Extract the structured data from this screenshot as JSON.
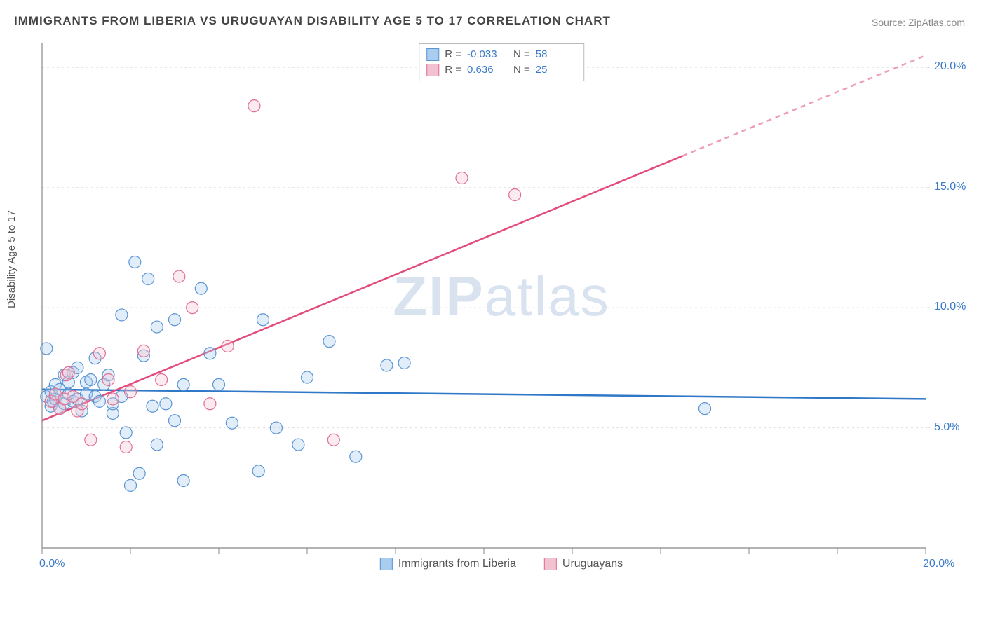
{
  "title": "IMMIGRANTS FROM LIBERIA VS URUGUAYAN DISABILITY AGE 5 TO 17 CORRELATION CHART",
  "source": "Source: ZipAtlas.com",
  "y_axis_label": "Disability Age 5 to 17",
  "watermark_bold": "ZIP",
  "watermark_light": "atlas",
  "chart": {
    "type": "scatter",
    "background_color": "#ffffff",
    "grid_color": "#e0e0e0",
    "axis_color": "#888888",
    "tick_color": "#888888",
    "xlim": [
      0,
      20
    ],
    "ylim": [
      0,
      21
    ],
    "x_ticks": [
      0,
      2,
      4,
      6,
      8,
      10,
      12,
      14,
      16,
      18,
      20
    ],
    "y_ticks": [
      5,
      10,
      15,
      20
    ],
    "x_tick_labels": {
      "0": "0.0%",
      "20": "20.0%"
    },
    "y_tick_labels": {
      "5": "5.0%",
      "10": "10.0%",
      "15": "15.0%",
      "20": "20.0%"
    },
    "label_color": "#3a7ac8",
    "label_fontsize": 16,
    "marker_radius": 8.5,
    "marker_stroke_width": 1.2,
    "marker_fill_opacity": 0.35,
    "series": [
      {
        "name": "Immigrants from Liberia",
        "color_fill": "#a9cdef",
        "color_stroke": "#5b95d4",
        "R": "-0.033",
        "N": "58",
        "trend": {
          "slope": -0.02,
          "intercept": 6.6,
          "color": "#2f78c7",
          "width": 2.5
        },
        "points": [
          [
            0.1,
            8.3
          ],
          [
            0.1,
            6.3
          ],
          [
            0.2,
            6.5
          ],
          [
            0.2,
            5.9
          ],
          [
            0.25,
            6.1
          ],
          [
            0.3,
            6.2
          ],
          [
            0.3,
            6.8
          ],
          [
            0.4,
            6.6
          ],
          [
            0.4,
            5.8
          ],
          [
            0.5,
            6.0
          ],
          [
            0.5,
            7.2
          ],
          [
            0.6,
            6.4
          ],
          [
            0.6,
            6.9
          ],
          [
            0.7,
            6.1
          ],
          [
            0.7,
            7.3
          ],
          [
            0.8,
            6.2
          ],
          [
            0.8,
            7.5
          ],
          [
            0.9,
            5.7
          ],
          [
            1.0,
            6.4
          ],
          [
            1.0,
            6.9
          ],
          [
            1.1,
            7.0
          ],
          [
            1.2,
            6.3
          ],
          [
            1.2,
            7.9
          ],
          [
            1.3,
            6.1
          ],
          [
            1.4,
            6.8
          ],
          [
            1.5,
            7.2
          ],
          [
            1.6,
            5.6
          ],
          [
            1.6,
            6.0
          ],
          [
            1.8,
            9.7
          ],
          [
            1.8,
            6.3
          ],
          [
            1.9,
            4.8
          ],
          [
            2.0,
            2.6
          ],
          [
            2.1,
            11.9
          ],
          [
            2.2,
            3.1
          ],
          [
            2.3,
            8.0
          ],
          [
            2.4,
            11.2
          ],
          [
            2.5,
            5.9
          ],
          [
            2.6,
            9.2
          ],
          [
            2.6,
            4.3
          ],
          [
            2.8,
            6.0
          ],
          [
            3.0,
            9.5
          ],
          [
            3.0,
            5.3
          ],
          [
            3.2,
            2.8
          ],
          [
            3.2,
            6.8
          ],
          [
            3.6,
            10.8
          ],
          [
            3.8,
            8.1
          ],
          [
            4.0,
            6.8
          ],
          [
            4.3,
            5.2
          ],
          [
            4.9,
            3.2
          ],
          [
            5.0,
            9.5
          ],
          [
            5.3,
            5.0
          ],
          [
            5.8,
            4.3
          ],
          [
            6.0,
            7.1
          ],
          [
            6.5,
            8.6
          ],
          [
            7.1,
            3.8
          ],
          [
            7.8,
            7.6
          ],
          [
            8.2,
            7.7
          ],
          [
            15.0,
            5.8
          ]
        ]
      },
      {
        "name": "Uruguayans",
        "color_fill": "#f3c2d0",
        "color_stroke": "#e06f93",
        "R": "0.636",
        "N": "25",
        "trend": {
          "slope": 0.76,
          "intercept": 5.3,
          "color": "#e34b7a",
          "width": 2.5,
          "dash_after_x": 14.5
        },
        "points": [
          [
            0.2,
            6.1
          ],
          [
            0.3,
            6.4
          ],
          [
            0.4,
            5.8
          ],
          [
            0.5,
            6.2
          ],
          [
            0.55,
            7.2
          ],
          [
            0.6,
            7.3
          ],
          [
            0.7,
            6.3
          ],
          [
            0.8,
            5.7
          ],
          [
            0.9,
            6.0
          ],
          [
            1.1,
            4.5
          ],
          [
            1.3,
            8.1
          ],
          [
            1.5,
            7.0
          ],
          [
            1.6,
            6.2
          ],
          [
            1.9,
            4.2
          ],
          [
            2.0,
            6.5
          ],
          [
            2.3,
            8.2
          ],
          [
            2.7,
            7.0
          ],
          [
            3.1,
            11.3
          ],
          [
            3.4,
            10.0
          ],
          [
            3.8,
            6.0
          ],
          [
            4.2,
            8.4
          ],
          [
            4.8,
            18.4
          ],
          [
            6.6,
            4.5
          ],
          [
            9.5,
            15.4
          ],
          [
            10.7,
            14.7
          ]
        ]
      }
    ]
  },
  "top_legend": {
    "r_label": "R =",
    "n_label": "N ="
  },
  "bottom_legend": {
    "series1": "Immigrants from Liberia",
    "series2": "Uruguayans"
  }
}
